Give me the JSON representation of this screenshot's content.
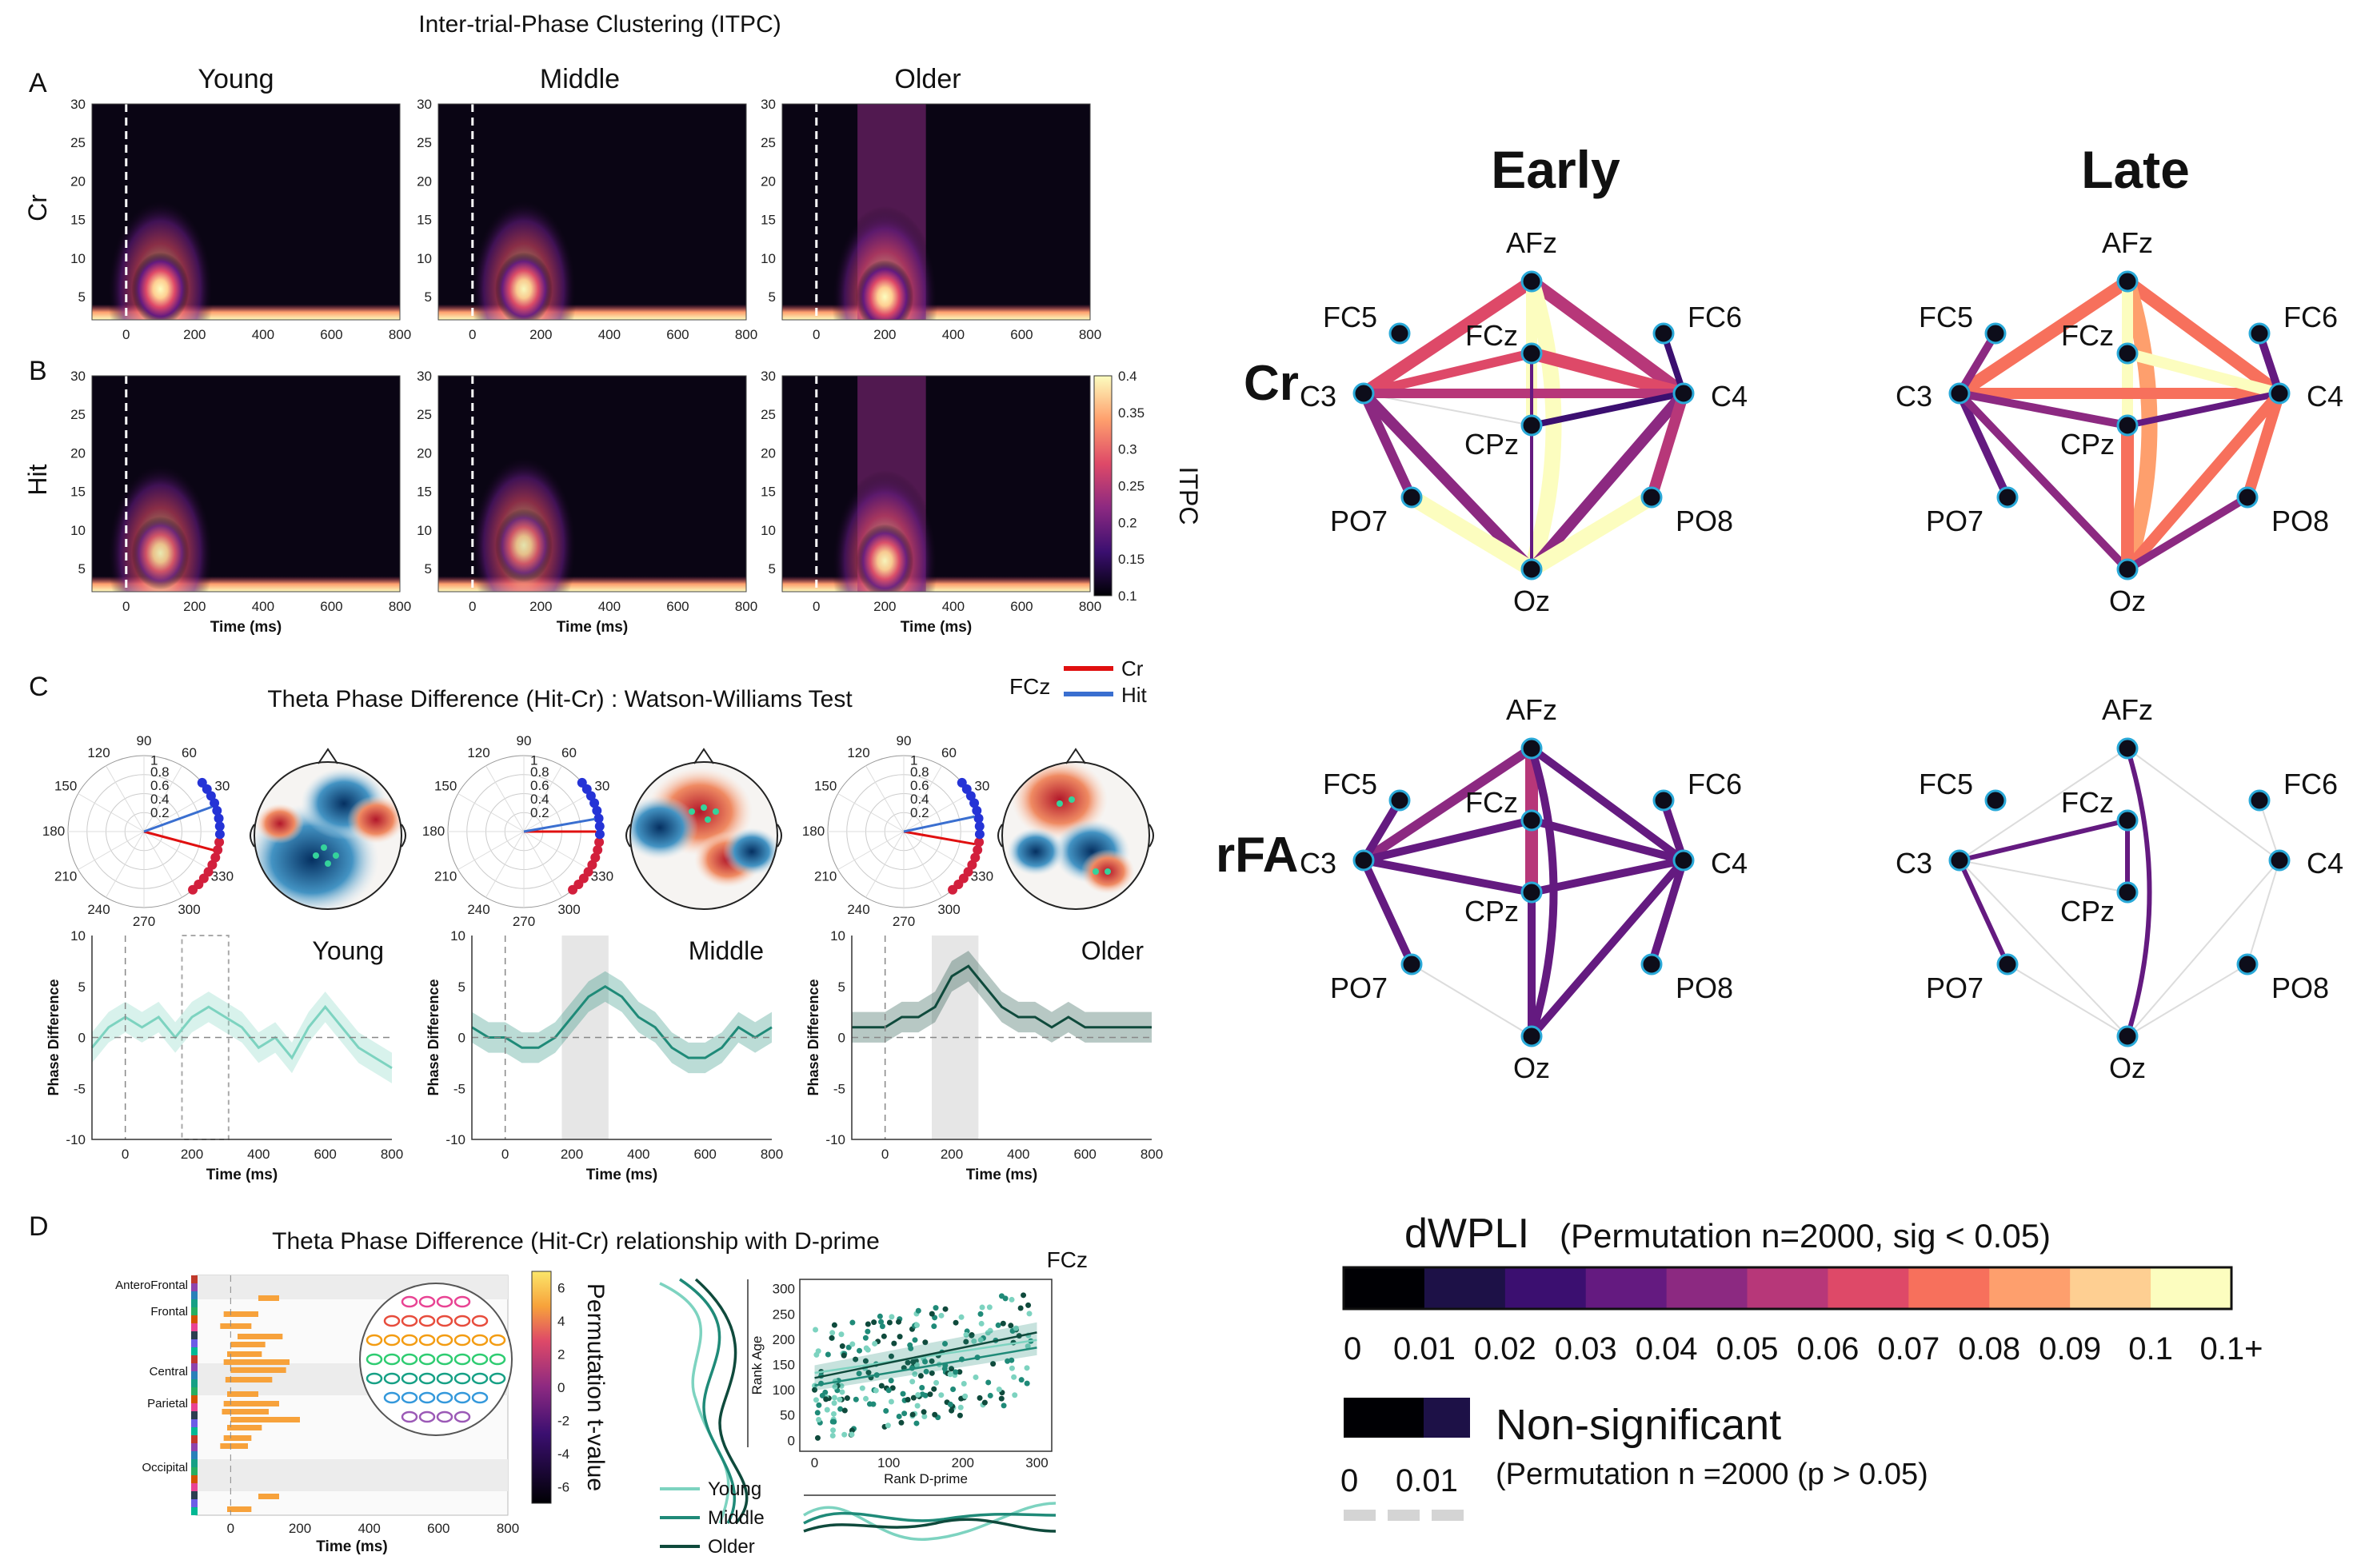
{
  "figure": {
    "title_itpc": "Inter-trial-Phase Clustering (ITPC)",
    "panel_labels": [
      "A",
      "B",
      "C",
      "D"
    ],
    "age_groups": [
      "Young",
      "Middle",
      "Older"
    ],
    "row_labels": [
      "Cr",
      "Hit"
    ],
    "time_axis_label": "Time (ms)",
    "colorbar_label": "ITPC",
    "theta_title": "Theta Phase Difference (Hit-Cr) : Watson-Williams Test",
    "legend_electrode": "FCz",
    "legend_items": [
      {
        "name": "Cr",
        "color": "#e01010"
      },
      {
        "name": "Hit",
        "color": "#3a6fd0"
      }
    ],
    "phase_diff_ylabel": "Phase Difference",
    "dprime_title": "Theta Phase Difference (Hit-Cr) relationship with D-prime",
    "dprime_regions": [
      "AnteroFrontal",
      "Frontal",
      "Central",
      "Parietal",
      "Occipital"
    ],
    "perm_label": "Permutation t-value",
    "fcz_label": "FCz",
    "scatter_xlabel": "Rank D-prime",
    "scatter_ylabel": "Rank Age",
    "net_columns": [
      "Early",
      "Late"
    ],
    "net_rows": [
      "Cr",
      "rFA"
    ],
    "electrodes": [
      "AFz",
      "FC5",
      "FC6",
      "FCz",
      "C3",
      "C4",
      "CPz",
      "PO7",
      "PO8",
      "Oz"
    ],
    "dwpli_title": "dWPLI",
    "dwpli_subtitle": "(Permutation n=2000, sig < 0.05)",
    "dwpli_ticks": [
      "0",
      "0.01",
      "0.02",
      "0.03",
      "0.04",
      "0.05",
      "0.06",
      "0.07",
      "0.08",
      "0.09",
      "0.1",
      "0.1+"
    ],
    "dwpli_colors": [
      "#000004",
      "#1d1147",
      "#3b0f70",
      "#641a80",
      "#8c2981",
      "#b73779",
      "#de4968",
      "#f7705c",
      "#fe9f6d",
      "#fecf92",
      "#fcfdbf"
    ],
    "nonsig_title": "Non-significant",
    "nonsig_subtitle": "(Permutation n =2000 (p > 0.05)",
    "nonsig_ticks": [
      "0",
      "0.01"
    ]
  },
  "chart_data": [
    {
      "type": "heatmap",
      "title": "Inter-trial-Phase Clustering (ITPC)",
      "rows": [
        "Cr",
        "Hit"
      ],
      "columns": [
        "Young",
        "Middle",
        "Older"
      ],
      "xlabel": "Time (ms)",
      "xlim": [
        -100,
        800
      ],
      "xticks": [
        0,
        200,
        400,
        600,
        800
      ],
      "ylim": [
        2,
        30
      ],
      "yticks": [
        5,
        10,
        15,
        20,
        25,
        30
      ],
      "colorbar": {
        "label": "ITPC",
        "range": [
          0.1,
          0.4
        ],
        "ticks": [
          0.1,
          0.15,
          0.2,
          0.25,
          0.3,
          0.35,
          0.4
        ]
      },
      "peaks": [
        {
          "row": "Cr",
          "group": "Young",
          "time": 100,
          "freq": 6,
          "itpc": 0.4
        },
        {
          "row": "Cr",
          "group": "Middle",
          "time": 150,
          "freq": 6,
          "itpc": 0.38
        },
        {
          "row": "Cr",
          "group": "Older",
          "time": 200,
          "freq": 5,
          "itpc": 0.4
        },
        {
          "row": "Hit",
          "group": "Young",
          "time": 100,
          "freq": 7,
          "itpc": 0.32
        },
        {
          "row": "Hit",
          "group": "Middle",
          "time": 150,
          "freq": 8,
          "itpc": 0.3
        },
        {
          "row": "Hit",
          "group": "Older",
          "time": 200,
          "freq": 6,
          "itpc": 0.36
        }
      ]
    },
    {
      "type": "line",
      "title": "Theta Phase Difference (Hit-Cr) : Watson-Williams Test",
      "xlabel": "Time (ms)",
      "ylabel": "Phase Difference",
      "xlim": [
        -100,
        800
      ],
      "xticks": [
        0,
        200,
        400,
        600,
        800
      ],
      "ylim": [
        -10,
        10
      ],
      "yticks": [
        -10,
        -5,
        0,
        5,
        10
      ],
      "x": [
        -100,
        -50,
        0,
        50,
        100,
        150,
        200,
        250,
        300,
        350,
        400,
        450,
        500,
        550,
        600,
        650,
        700,
        750,
        800
      ],
      "series": [
        {
          "name": "Young",
          "color": "#7dd3c0",
          "shaded": [
            170,
            310
          ],
          "values": [
            -1,
            1,
            2,
            1,
            2,
            0,
            2,
            3,
            2,
            1,
            -1,
            0,
            -2,
            1,
            3,
            1,
            -1,
            -2,
            -3
          ]
        },
        {
          "name": "Middle",
          "color": "#1f8a78",
          "shaded": [
            170,
            310
          ],
          "values": [
            1,
            0,
            0,
            -1,
            -1,
            0,
            2,
            4,
            5,
            4,
            2,
            1,
            -1,
            -2,
            -2,
            -1,
            1,
            0,
            1
          ]
        },
        {
          "name": "Older",
          "color": "#0f4a3c",
          "shaded": [
            140,
            280
          ],
          "values": [
            1,
            1,
            1,
            2,
            2,
            3,
            6,
            7,
            5,
            3,
            2,
            2,
            1,
            2,
            1,
            1,
            1,
            1,
            1
          ]
        }
      ]
    },
    {
      "type": "scatter",
      "title": "FCz",
      "xlabel": "Rank D-prime",
      "ylabel": "Rank Age",
      "xlim": [
        -20,
        320
      ],
      "ylim": [
        -20,
        320
      ],
      "xticks": [
        0,
        100,
        200,
        300
      ],
      "yticks": [
        0,
        50,
        100,
        150,
        200,
        250,
        300
      ],
      "series": [
        {
          "name": "Young",
          "color": "#7dd3c0",
          "trend": [
            [
              0,
              135
            ],
            [
              300,
              200
            ]
          ]
        },
        {
          "name": "Middle",
          "color": "#1f8a78",
          "trend": [
            [
              0,
              110
            ],
            [
              300,
              185
            ]
          ]
        },
        {
          "name": "Older",
          "color": "#0f4a3c",
          "trend": [
            [
              0,
              125
            ],
            [
              300,
              215
            ]
          ]
        }
      ]
    },
    {
      "type": "bar",
      "title": "Theta Phase Difference (Hit-Cr) relationship with D-prime",
      "xlabel": "Time (ms)",
      "xlim": [
        -100,
        800
      ],
      "xticks": [
        0,
        200,
        400,
        600,
        800
      ],
      "colorbar": {
        "label": "Permutation t-value",
        "range": [
          -7,
          7
        ],
        "ticks": [
          6,
          4,
          2,
          0,
          -2,
          -4,
          -6
        ]
      }
    }
  ]
}
